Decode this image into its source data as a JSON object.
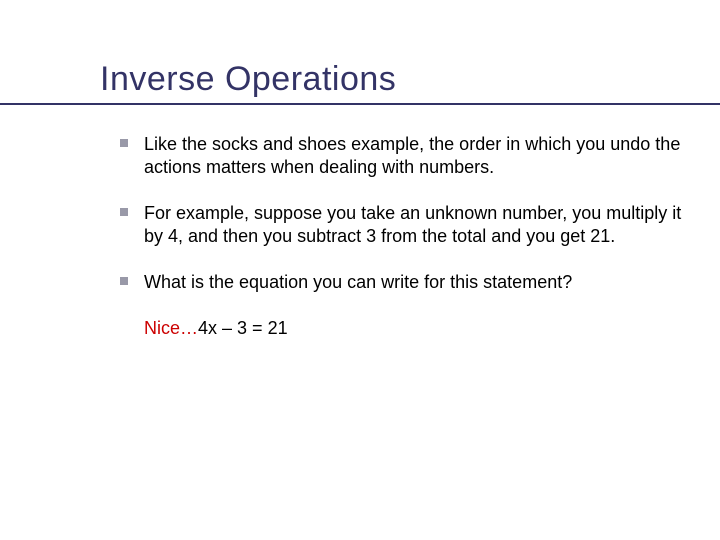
{
  "slide": {
    "title": "Inverse Operations",
    "bullets": [
      "Like the socks and shoes example, the order in which you undo the actions matters when dealing with numbers.",
      "For example, suppose you take an unknown number, you multiply it by 4, and then you subtract 3 from the total and you get 21.",
      "What is the equation you can write for this statement?"
    ],
    "answer": {
      "prefix": "Nice…",
      "equation": "4x – 3 = 21"
    },
    "colors": {
      "title_color": "#333366",
      "underline_color": "#333366",
      "bullet_marker": "#9999a8",
      "body_text": "#000000",
      "answer_highlight": "#cc0000",
      "background": "#ffffff"
    },
    "typography": {
      "title_fontsize": 34,
      "body_fontsize": 18,
      "font_family": "Verdana"
    }
  }
}
